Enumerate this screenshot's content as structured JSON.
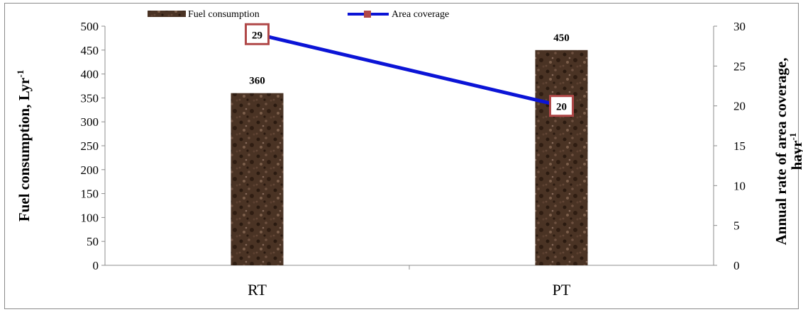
{
  "chart_data": {
    "type": "bar",
    "categories": [
      "RT",
      "PT"
    ],
    "series": [
      {
        "name": "Fuel consumption",
        "chart": "bar",
        "axis": "left",
        "values": [
          360,
          450
        ],
        "labels": [
          "360",
          "450"
        ],
        "color": "#4a3324"
      },
      {
        "name": "Area coverage",
        "chart": "line",
        "axis": "right",
        "values": [
          29,
          20
        ],
        "labels": [
          "29",
          "20"
        ],
        "color": "#0b14d6",
        "marker_color": "#b04848"
      }
    ],
    "ylabel_left": "Fuel consumption, Lyr",
    "ylabel_left_sup": "-1",
    "ylabel_right_line1": "Annual rate of area coverage,",
    "ylabel_right_line2": "hayr",
    "ylabel_right_sup": "-1",
    "ylim_left": [
      0,
      500
    ],
    "ylim_right": [
      0,
      30
    ],
    "yticks_left": [
      "0",
      "50",
      "100",
      "150",
      "200",
      "250",
      "300",
      "350",
      "400",
      "450",
      "500"
    ],
    "yticks_right": [
      "0",
      "5",
      "10",
      "15",
      "20",
      "25",
      "30"
    ],
    "legend_position": "top",
    "grid": false
  }
}
